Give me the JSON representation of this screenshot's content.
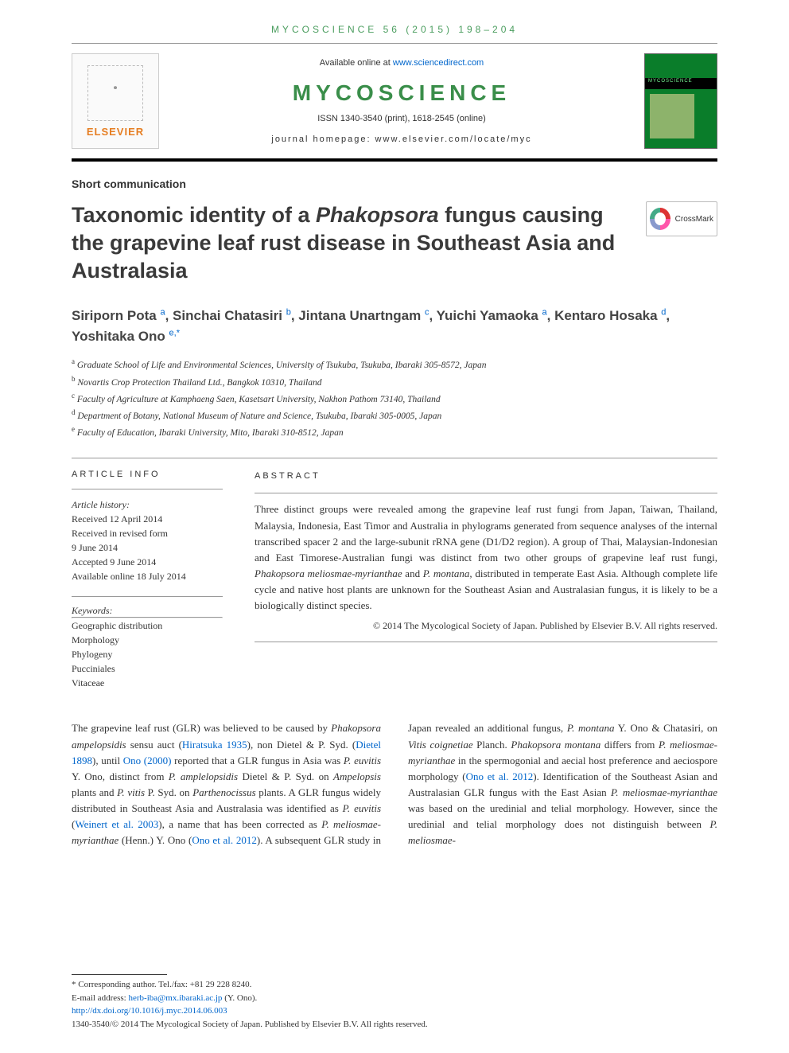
{
  "header": {
    "running_head": "MYCOSCIENCE 56 (2015) 198–204",
    "available_text": "Available online at ",
    "available_link": "www.sciencedirect.com",
    "journal_title": "MYCOSCIENCE",
    "issn_line": "ISSN 1340-3540 (print), 1618-2545 (online)",
    "homepage_line": "journal homepage: www.elsevier.com/locate/myc",
    "elsevier_name": "ELSEVIER",
    "crossmark_label": "CrossMark"
  },
  "article": {
    "type_label": "Short communication",
    "title_html": "Taxonomic identity of a <i>Phakopsora</i> fungus causing the grapevine leaf rust disease in Southeast Asia and Australasia",
    "authors_html": "Siriporn Pota <sup><a>a</a></sup>, Sinchai Chatasiri <sup><a>b</a></sup>, Jintana Unartngam <sup><a>c</a></sup>, Yuichi Yamaoka <sup><a>a</a></sup>, Kentaro Hosaka <sup><a>d</a></sup>, Yoshitaka Ono <sup><a>e,</a>*</sup>",
    "affiliations": [
      {
        "sup": "a",
        "text": "Graduate School of Life and Environmental Sciences, University of Tsukuba, Tsukuba, Ibaraki 305-8572, Japan"
      },
      {
        "sup": "b",
        "text": "Novartis Crop Protection Thailand Ltd., Bangkok 10310, Thailand"
      },
      {
        "sup": "c",
        "text": "Faculty of Agriculture at Kamphaeng Saen, Kasetsart University, Nakhon Pathom 73140, Thailand"
      },
      {
        "sup": "d",
        "text": "Department of Botany, National Museum of Nature and Science, Tsukuba, Ibaraki 305-0005, Japan"
      },
      {
        "sup": "e",
        "text": "Faculty of Education, Ibaraki University, Mito, Ibaraki 310-8512, Japan"
      }
    ]
  },
  "info": {
    "heading": "ARTICLE INFO",
    "history_label": "Article history:",
    "history": [
      "Received 12 April 2014",
      "Received in revised form",
      "9 June 2014",
      "Accepted 9 June 2014",
      "Available online 18 July 2014"
    ],
    "keywords_label": "Keywords:",
    "keywords": [
      "Geographic distribution",
      "Morphology",
      "Phylogeny",
      "Pucciniales",
      "Vitaceae"
    ]
  },
  "abstract": {
    "heading": "ABSTRACT",
    "text_html": "Three distinct groups were revealed among the grapevine leaf rust fungi from Japan, Taiwan, Thailand, Malaysia, Indonesia, East Timor and Australia in phylograms generated from sequence analyses of the internal transcribed spacer 2 and the large-subunit rRNA gene (D1/D2 region). A group of Thai, Malaysian-Indonesian and East Timorese-Australian fungi was distinct from two other groups of grapevine leaf rust fungi, <i>Phakopsora meliosmae-myrianthae</i> and <i>P. montana</i>, distributed in temperate East Asia. Although complete life cycle and native host plants are unknown for the Southeast Asian and Australasian fungus, it is likely to be a biologically distinct species.",
    "copyright": "© 2014 The Mycological Society of Japan. Published by Elsevier B.V. All rights reserved."
  },
  "body": {
    "para_html": "The grapevine leaf rust (GLR) was believed to be caused by <i>Phakopsora ampelopsidis</i> sensu auct (<a>Hiratsuka 1935</a>), non Dietel & P. Syd. (<a>Dietel 1898</a>), until <a>Ono (2000)</a> reported that a GLR fungus in Asia was <i>P. euvitis</i> Y. Ono, distinct from <i>P. amplelopsidis</i> Dietel & P. Syd. on <i>Ampelopsis</i> plants and <i>P. vitis</i> P. Syd. on <i>Parthenocissus</i> plants. A GLR fungus widely distributed in Southeast Asia and Australasia was identified as <i>P. euvitis</i> (<a>Weinert et al. 2003</a>), a name that has been corrected as <i>P. meliosmae-myrianthae</i> (Henn.) Y. Ono (<a>Ono et al. 2012</a>). A subsequent GLR study in Japan revealed an additional fungus, <i>P. montana</i> Y. Ono & Chatasiri, on <i>Vitis coignetiae</i> Planch. <i>Phakopsora montana</i> differs from <i>P. meliosmae-myrianthae</i> in the spermogonial and aecial host preference and aeciospore morphology (<a>Ono et al. 2012</a>). Identification of the Southeast Asian and Australasian GLR fungus with the East Asian <i>P. meliosmae-myrianthae</i> was based on the uredinial and telial morphology. However, since the uredinial and telial morphology does not distinguish between <i>P. meliosmae-</i>"
  },
  "footer": {
    "corr_label": "* Corresponding author. Tel./fax: +81 29 228 8240.",
    "email_label": "E-mail address: ",
    "email": "herb-iba@mx.ibaraki.ac.jp",
    "email_suffix": " (Y. Ono).",
    "doi": "http://dx.doi.org/10.1016/j.myc.2014.06.003",
    "bottom_line": "1340-3540/© 2014 The Mycological Society of Japan. Published by Elsevier B.V. All rights reserved."
  },
  "colors": {
    "accent_green": "#3a8e4a",
    "link_blue": "#0066cc",
    "text": "#333333"
  }
}
